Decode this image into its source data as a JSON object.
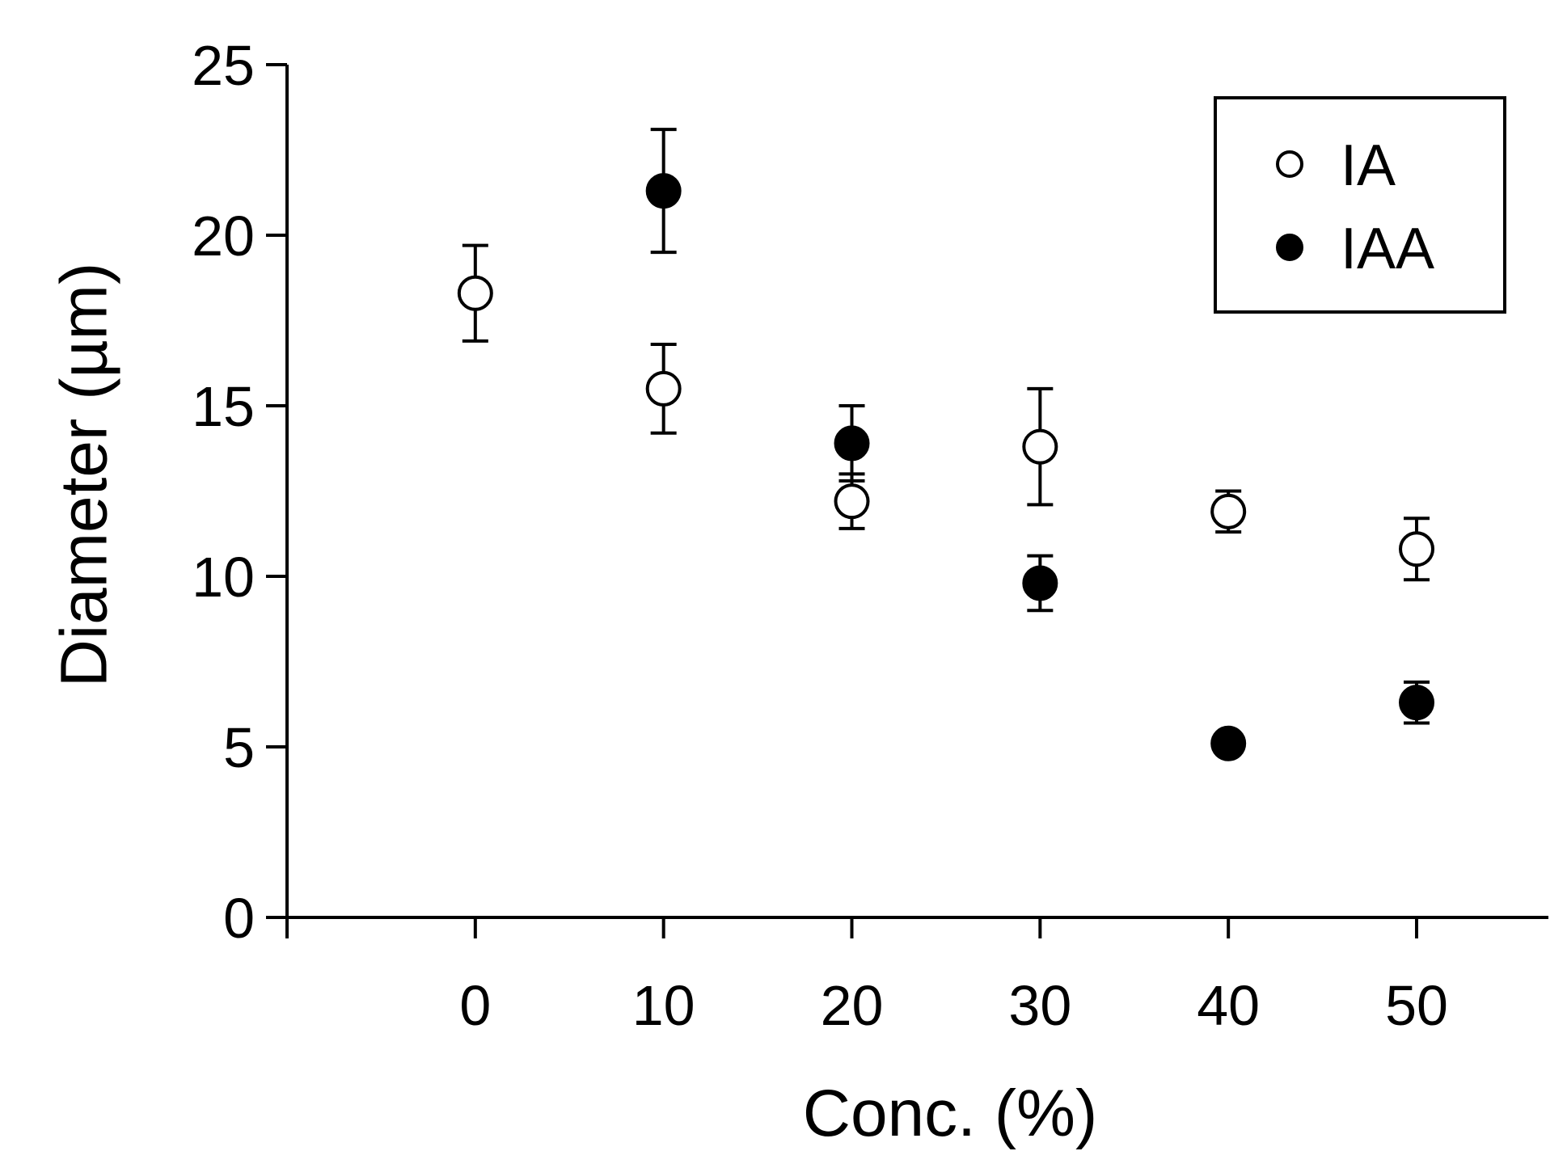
{
  "chart_data": {
    "type": "scatter",
    "xlabel": "Conc. (%)",
    "ylabel": "Diameter  (µm)",
    "xlim": [
      -10,
      57
    ],
    "ylim": [
      0,
      25
    ],
    "xticks": [
      0,
      10,
      20,
      30,
      40,
      50
    ],
    "yticks": [
      0,
      5,
      10,
      15,
      20,
      25
    ],
    "grid": false,
    "legend_position": "top-right",
    "error_bars": true,
    "series": [
      {
        "name": "IA",
        "marker": "open-circle",
        "points": [
          {
            "x": 0,
            "y": 18.3,
            "err": 1.4
          },
          {
            "x": 10,
            "y": 15.5,
            "err": 1.3
          },
          {
            "x": 20,
            "y": 12.2,
            "err": 0.8
          },
          {
            "x": 30,
            "y": 13.8,
            "err": 1.7
          },
          {
            "x": 40,
            "y": 11.9,
            "err": 0.6
          },
          {
            "x": 50,
            "y": 10.8,
            "err": 0.9
          }
        ]
      },
      {
        "name": "IAA",
        "marker": "filled-circle",
        "points": [
          {
            "x": 10,
            "y": 21.3,
            "err": 1.8
          },
          {
            "x": 20,
            "y": 13.9,
            "err": 1.1
          },
          {
            "x": 30,
            "y": 9.8,
            "err": 0.8
          },
          {
            "x": 40,
            "y": 5.1,
            "err": 0.2
          },
          {
            "x": 50,
            "y": 6.3,
            "err": 0.6
          }
        ]
      }
    ]
  }
}
